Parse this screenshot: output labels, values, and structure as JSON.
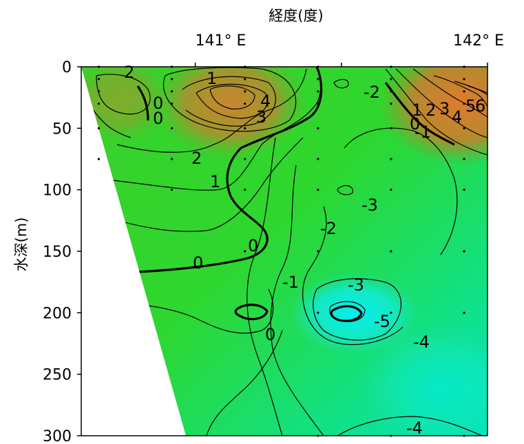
{
  "chart_data": {
    "type": "heatmap",
    "subtype": "contour",
    "title": "",
    "xlabel": "経度(度)",
    "ylabel": "水深(m)",
    "x_axis_position": "top",
    "x_ticks": [
      "141° E",
      "142° E"
    ],
    "y_ticks": [
      "0",
      "50",
      "100",
      "150",
      "200",
      "250",
      "300"
    ],
    "ylim": [
      0,
      300
    ],
    "grid": false,
    "colors": {
      "warm": "#e07a2e",
      "mid": "#2ed72e",
      "cool": "#00e6e6",
      "contour_line": "#000000"
    },
    "contour_labels": [
      "2",
      "1",
      "4",
      "3",
      "0",
      "0",
      "2",
      "1",
      "0",
      "0",
      "-2",
      "1",
      "2",
      "3",
      "4",
      "5",
      "6",
      "0",
      "-1",
      "-3",
      "-2",
      "-1",
      "-3",
      "-5",
      "-4",
      "0",
      "-4"
    ],
    "sample_points": [
      [
        140.67,
        0
      ],
      [
        140.92,
        0
      ],
      [
        141.17,
        0
      ],
      [
        141.42,
        0
      ],
      [
        141.67,
        0
      ],
      [
        141.92,
        0
      ],
      [
        140.67,
        10
      ],
      [
        140.92,
        10
      ],
      [
        141.17,
        10
      ],
      [
        141.42,
        10
      ],
      [
        141.67,
        10
      ],
      [
        141.92,
        10
      ],
      [
        140.67,
        20
      ],
      [
        140.92,
        20
      ],
      [
        141.17,
        20
      ],
      [
        141.42,
        20
      ],
      [
        141.67,
        20
      ],
      [
        141.92,
        20
      ],
      [
        140.67,
        30
      ],
      [
        140.92,
        30
      ],
      [
        141.17,
        30
      ],
      [
        141.42,
        30
      ],
      [
        141.67,
        30
      ],
      [
        141.92,
        30
      ],
      [
        140.67,
        50
      ],
      [
        140.92,
        50
      ],
      [
        141.17,
        50
      ],
      [
        141.42,
        50
      ],
      [
        141.67,
        50
      ],
      [
        141.92,
        50
      ],
      [
        140.67,
        75
      ],
      [
        140.92,
        75
      ],
      [
        141.17,
        75
      ],
      [
        141.42,
        75
      ],
      [
        141.67,
        75
      ],
      [
        141.92,
        75
      ],
      [
        140.92,
        100
      ],
      [
        141.17,
        100
      ],
      [
        141.42,
        100
      ],
      [
        141.67,
        100
      ],
      [
        141.92,
        100
      ],
      [
        141.17,
        150
      ],
      [
        141.42,
        150
      ],
      [
        141.67,
        150
      ],
      [
        141.92,
        150
      ],
      [
        141.42,
        200
      ],
      [
        141.67,
        200
      ],
      [
        141.92,
        200
      ],
      [
        141.42,
        300
      ],
      [
        141.67,
        300
      ],
      [
        141.92,
        300
      ]
    ]
  }
}
